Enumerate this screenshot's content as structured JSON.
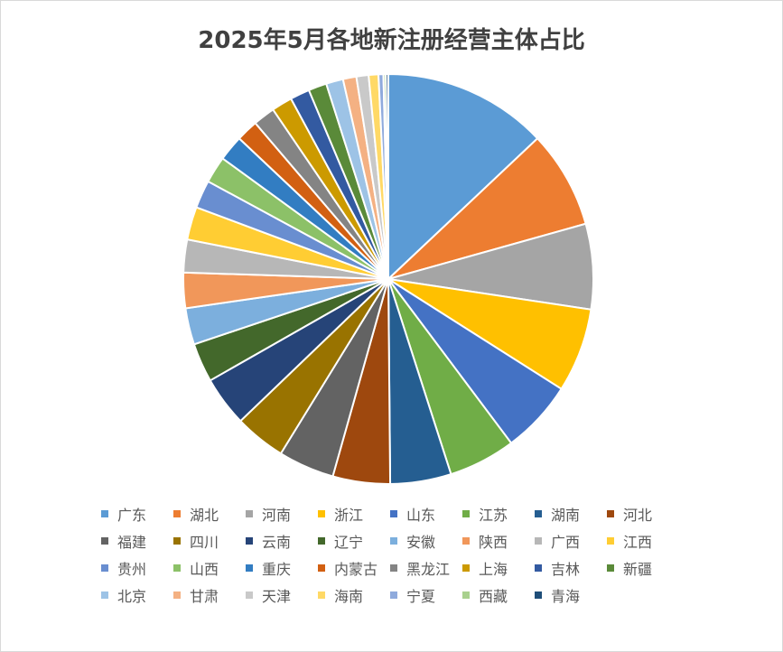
{
  "chart_data": {
    "type": "pie",
    "title": "2025年5月各地新注册经营主体占比",
    "legend_position": "bottom",
    "slices": [
      {
        "name": "广东",
        "value": 13.5,
        "color": "#5B9BD5"
      },
      {
        "name": "湖北",
        "value": 8.0,
        "color": "#ED7D31"
      },
      {
        "name": "河南",
        "value": 7.0,
        "color": "#A5A5A5"
      },
      {
        "name": "浙江",
        "value": 6.9,
        "color": "#FFC000"
      },
      {
        "name": "山东",
        "value": 6.0,
        "color": "#4472C4"
      },
      {
        "name": "江苏",
        "value": 5.5,
        "color": "#70AD47"
      },
      {
        "name": "湖南",
        "value": 5.0,
        "color": "#255E91"
      },
      {
        "name": "河北",
        "value": 4.7,
        "color": "#9E480E"
      },
      {
        "name": "福建",
        "value": 4.6,
        "color": "#636363"
      },
      {
        "name": "四川",
        "value": 4.2,
        "color": "#997300"
      },
      {
        "name": "云南",
        "value": 4.1,
        "color": "#264478"
      },
      {
        "name": "辽宁",
        "value": 3.2,
        "color": "#43682B"
      },
      {
        "name": "安徽",
        "value": 3.0,
        "color": "#7CAFDD"
      },
      {
        "name": "陕西",
        "value": 2.9,
        "color": "#F1975A"
      },
      {
        "name": "广西",
        "value": 2.7,
        "color": "#B7B7B7"
      },
      {
        "name": "江西",
        "value": 2.7,
        "color": "#FFCD33"
      },
      {
        "name": "贵州",
        "value": 2.3,
        "color": "#698ED0"
      },
      {
        "name": "山西",
        "value": 2.2,
        "color": "#8CC168"
      },
      {
        "name": "重庆",
        "value": 2.1,
        "color": "#327DC2"
      },
      {
        "name": "内蒙古",
        "value": 1.8,
        "color": "#D26012"
      },
      {
        "name": "黑龙江",
        "value": 1.8,
        "color": "#848484"
      },
      {
        "name": "上海",
        "value": 1.7,
        "color": "#CC9A00"
      },
      {
        "name": "吉林",
        "value": 1.6,
        "color": "#335AA1"
      },
      {
        "name": "新疆",
        "value": 1.5,
        "color": "#5A8A39"
      },
      {
        "name": "北京",
        "value": 1.4,
        "color": "#9DC3E6"
      },
      {
        "name": "甘肃",
        "value": 1.1,
        "color": "#F4B183"
      },
      {
        "name": "天津",
        "value": 1.0,
        "color": "#C9C9C9"
      },
      {
        "name": "海南",
        "value": 0.8,
        "color": "#FFD966"
      },
      {
        "name": "宁夏",
        "value": 0.4,
        "color": "#8FAADC"
      },
      {
        "name": "西藏",
        "value": 0.2,
        "color": "#A9D18E"
      },
      {
        "name": "青海",
        "value": 0.2,
        "color": "#1F4E79"
      }
    ]
  }
}
